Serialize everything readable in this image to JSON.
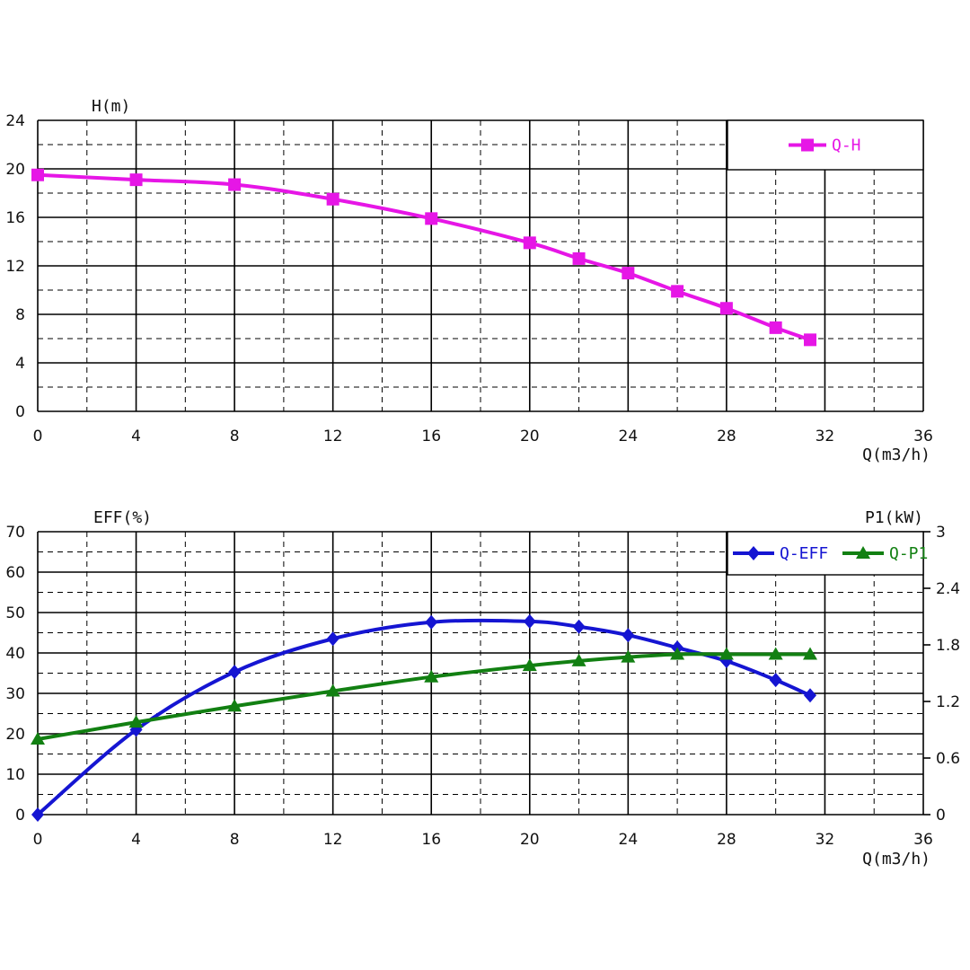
{
  "chart_data": [
    {
      "type": "line",
      "title": "",
      "ylabel": "H(m)",
      "xlabel": "Q(m3/h)",
      "xlim": [
        0,
        36
      ],
      "ylim": [
        0,
        24
      ],
      "x_ticks": [
        "0",
        "4",
        "8",
        "12",
        "16",
        "20",
        "24",
        "28",
        "32",
        "36"
      ],
      "y_ticks": [
        "0",
        "4",
        "8",
        "12",
        "16",
        "20",
        "24"
      ],
      "grid": true,
      "legend_position": "top-right",
      "series": [
        {
          "name": "Q-H",
          "color": "#e616e6",
          "marker": "square",
          "x": [
            0,
            4,
            8,
            12,
            16,
            20,
            22,
            24,
            26,
            28,
            30,
            31.4
          ],
          "y": [
            19.5,
            19.1,
            18.7,
            17.5,
            15.9,
            13.9,
            12.6,
            11.4,
            9.9,
            8.5,
            6.9,
            5.9
          ]
        }
      ]
    },
    {
      "type": "line",
      "title": "",
      "ylabel": "EFF(%)",
      "y2label": "P1(kW)",
      "xlabel": "Q(m3/h)",
      "xlim": [
        0,
        36
      ],
      "ylim": [
        0,
        70
      ],
      "y2lim": [
        0,
        3
      ],
      "x_ticks": [
        "0",
        "4",
        "8",
        "12",
        "16",
        "20",
        "24",
        "28",
        "32",
        "36"
      ],
      "y_ticks": [
        "0",
        "10",
        "20",
        "30",
        "40",
        "50",
        "60",
        "70"
      ],
      "y2_ticks": [
        "0",
        "0.6",
        "1.2",
        "1.8",
        "2.4",
        "3"
      ],
      "grid": true,
      "legend_position": "top-right",
      "series": [
        {
          "name": "Q-EFF",
          "axis": "left",
          "color": "#1515d2",
          "marker": "diamond",
          "x": [
            0,
            4,
            8,
            12,
            16,
            20,
            22,
            24,
            26,
            28,
            30,
            31.4
          ],
          "y": [
            0,
            21,
            35.3,
            43.5,
            47.6,
            47.8,
            46.5,
            44.4,
            41.3,
            38,
            33.3,
            29.5
          ]
        },
        {
          "name": "Q-P1",
          "axis": "right",
          "color": "#128012",
          "marker": "triangle",
          "x": [
            0,
            4,
            8,
            12,
            16,
            20,
            22,
            24,
            26,
            28,
            30,
            31.4
          ],
          "y": [
            0.8,
            0.98,
            1.15,
            1.31,
            1.46,
            1.58,
            1.63,
            1.67,
            1.7,
            1.7,
            1.7,
            1.7
          ]
        }
      ]
    }
  ]
}
